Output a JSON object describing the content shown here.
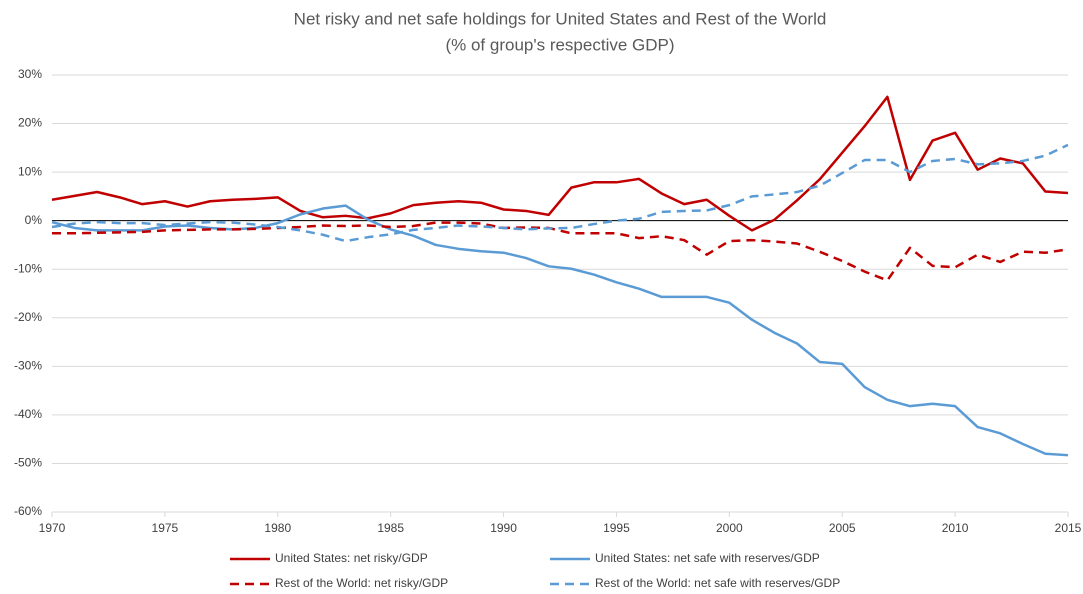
{
  "chart_data": {
    "type": "line",
    "title": "Net risky and net safe holdings for United States and Rest of the World",
    "subtitle": "(% of group's respective GDP)",
    "x": [
      1970,
      1971,
      1972,
      1973,
      1974,
      1975,
      1976,
      1977,
      1978,
      1979,
      1980,
      1981,
      1982,
      1983,
      1984,
      1985,
      1986,
      1987,
      1988,
      1989,
      1990,
      1991,
      1992,
      1993,
      1994,
      1995,
      1996,
      1997,
      1998,
      1999,
      2000,
      2001,
      2002,
      2003,
      2004,
      2005,
      2006,
      2007,
      2008,
      2009,
      2010,
      2011,
      2012,
      2013,
      2014,
      2015
    ],
    "series": [
      {
        "name": "United States: net risky/GDP",
        "color": "#c00000",
        "dashed": false,
        "values": [
          4.3,
          5.1,
          5.9,
          4.8,
          3.4,
          4.0,
          2.9,
          4.0,
          4.3,
          4.5,
          4.8,
          2.0,
          0.7,
          1.0,
          0.5,
          1.5,
          3.2,
          3.7,
          4.0,
          3.7,
          2.3,
          2.0,
          1.2,
          6.8,
          7.9,
          7.9,
          8.6,
          5.6,
          3.4,
          4.3,
          1.0,
          -2.0,
          0.2,
          4.2,
          8.5,
          14.0,
          19.5,
          25.5,
          8.4,
          16.5,
          18.1,
          10.5,
          12.8,
          11.8,
          6.0,
          5.7
        ]
      },
      {
        "name": "United States: net safe with reserves/GDP",
        "color": "#5b9bd5",
        "dashed": false,
        "values": [
          -0.3,
          -1.5,
          -2.0,
          -2.0,
          -2.0,
          -1.2,
          -1.0,
          -1.5,
          -1.8,
          -1.5,
          -0.5,
          1.3,
          2.5,
          3.1,
          0.2,
          -1.8,
          -3.1,
          -5.0,
          -5.8,
          -6.3,
          -6.6,
          -7.7,
          -9.4,
          -9.9,
          -11.1,
          -12.7,
          -14.0,
          -15.7,
          -15.7,
          -15.7,
          -16.9,
          -20.4,
          -23.1,
          -25.3,
          -29.1,
          -29.5,
          -34.3,
          -36.9,
          -38.2,
          -37.7,
          -38.2,
          -42.5,
          -43.8,
          -46.0,
          -48.0,
          -48.3
        ]
      },
      {
        "name": "Rest of the World: net risky/GDP",
        "color": "#c00000",
        "dashed": true,
        "values": [
          -2.6,
          -2.6,
          -2.5,
          -2.4,
          -2.3,
          -2.0,
          -1.9,
          -1.8,
          -1.8,
          -1.7,
          -1.5,
          -1.3,
          -1.0,
          -1.1,
          -1.0,
          -1.3,
          -1.1,
          -0.4,
          -0.4,
          -0.6,
          -1.5,
          -1.4,
          -1.5,
          -2.6,
          -2.6,
          -2.6,
          -3.6,
          -3.2,
          -4.0,
          -7.0,
          -4.2,
          -4.0,
          -4.3,
          -4.7,
          -6.4,
          -8.3,
          -10.5,
          -12.3,
          -5.6,
          -9.3,
          -9.6,
          -7.0,
          -8.5,
          -6.4,
          -6.6,
          -5.9
        ]
      },
      {
        "name": "Rest of the World: net safe with reserves/GDP",
        "color": "#5b9bd5",
        "dashed": true,
        "values": [
          -1.3,
          -0.6,
          -0.3,
          -0.5,
          -0.5,
          -0.9,
          -0.6,
          -0.3,
          -0.4,
          -0.8,
          -1.3,
          -2.0,
          -2.9,
          -4.2,
          -3.4,
          -2.8,
          -1.9,
          -1.5,
          -1.0,
          -1.2,
          -1.5,
          -1.8,
          -1.6,
          -1.5,
          -0.7,
          0.0,
          0.4,
          1.8,
          2.0,
          2.1,
          3.2,
          5.0,
          5.4,
          5.9,
          7.2,
          9.8,
          12.5,
          12.5,
          10.0,
          12.3,
          12.7,
          11.6,
          11.8,
          12.3,
          13.4,
          15.6
        ]
      }
    ],
    "xlim": [
      1970,
      2015
    ],
    "xticks": [
      1970,
      1975,
      1980,
      1985,
      1990,
      1995,
      2000,
      2005,
      2010,
      2015
    ],
    "ylim": [
      -60,
      30
    ],
    "yticks": [
      {
        "value": 30,
        "label": "30%"
      },
      {
        "value": 20,
        "label": "20%"
      },
      {
        "value": 10,
        "label": "10%"
      },
      {
        "value": 0,
        "label": "0%"
      },
      {
        "value": -10,
        "label": "-10%"
      },
      {
        "value": -20,
        "label": "-20%"
      },
      {
        "value": -30,
        "label": "-30%"
      },
      {
        "value": -40,
        "label": "-40%"
      },
      {
        "value": -50,
        "label": "-50%"
      },
      {
        "value": -60,
        "label": "-60%"
      }
    ],
    "grid": true,
    "legend": "bottom"
  }
}
